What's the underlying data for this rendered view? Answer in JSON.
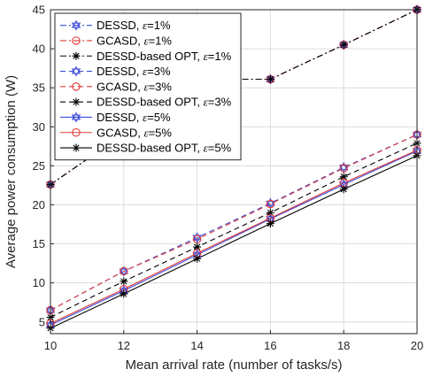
{
  "chart_data": {
    "type": "line",
    "title": "",
    "xlabel": "Mean arrival rate (number of tasks/s)",
    "ylabel": "Average power consumption (W)",
    "xlim": [
      10,
      20
    ],
    "ylim": [
      3.5,
      45
    ],
    "x": [
      10,
      12,
      14,
      16,
      18,
      20
    ],
    "xticks": [
      "10",
      "12",
      "14",
      "16",
      "18",
      "20"
    ],
    "yticks": [
      "5",
      "10",
      "15",
      "20",
      "25",
      "30",
      "35",
      "40",
      "45"
    ],
    "grid": true,
    "legend_position": "top-left",
    "series": [
      {
        "name": "DESSD, ε=1%",
        "legend_main": "DESSD, ",
        "legend_var": "ε",
        "legend_rest": "=1%",
        "color": "#3b4bd9",
        "dash": "dashdot",
        "marker": "hexagram",
        "values": [
          22.6,
          29.1,
          36.1,
          36.1,
          40.5,
          45.0
        ]
      },
      {
        "name": "GCASD, ε=1%",
        "legend_main": "GCASD, ",
        "legend_var": "ε",
        "legend_rest": "=1%",
        "color": "#e23a3a",
        "dash": "dashdot",
        "marker": "circle",
        "values": [
          22.6,
          29.1,
          36.1,
          36.1,
          40.5,
          45.0
        ]
      },
      {
        "name": "DESSD-based OPT, ε=1%",
        "legend_main": "DESSD-based OPT, ",
        "legend_var": "ε",
        "legend_rest": "=1%",
        "color": "#000000",
        "dash": "dashdot",
        "marker": "asterisk",
        "values": [
          22.6,
          29.1,
          36.1,
          36.1,
          40.5,
          45.0
        ]
      },
      {
        "name": "DESSD, ε=3%",
        "legend_main": "DESSD, ",
        "legend_var": "ε",
        "legend_rest": "=3%",
        "color": "#3b4bd9",
        "dash": "dashed",
        "marker": "hexagram",
        "values": [
          6.5,
          11.5,
          15.8,
          20.2,
          24.8,
          29.0
        ]
      },
      {
        "name": "GCASD, ε=3%",
        "legend_main": "GCASD, ",
        "legend_var": "ε",
        "legend_rest": "=3%",
        "color": "#e23a3a",
        "dash": "dashed",
        "marker": "circle",
        "values": [
          6.5,
          11.5,
          15.6,
          20.1,
          24.7,
          29.0
        ]
      },
      {
        "name": "DESSD-based OPT, ε=3%",
        "legend_main": "DESSD-based OPT, ",
        "legend_var": "ε",
        "legend_rest": "=3%",
        "color": "#000000",
        "dash": "dashed",
        "marker": "asterisk",
        "values": [
          5.6,
          10.2,
          14.6,
          19.0,
          23.6,
          27.9
        ]
      },
      {
        "name": "DESSD, ε=5%",
        "legend_main": "DESSD, ",
        "legend_var": "ε",
        "legend_rest": "=5%",
        "color": "#3b4bd9",
        "dash": "solid",
        "marker": "hexagram",
        "values": [
          4.6,
          9.0,
          13.6,
          18.2,
          22.6,
          26.9
        ]
      },
      {
        "name": "GCASD, ε=5%",
        "legend_main": "GCASD, ",
        "legend_var": "ε",
        "legend_rest": "=5%",
        "color": "#e23a3a",
        "dash": "solid",
        "marker": "circle",
        "values": [
          4.8,
          9.2,
          13.8,
          18.3,
          22.8,
          27.0
        ]
      },
      {
        "name": "DESSD-based OPT, ε=5%",
        "legend_main": "DESSD-based OPT, ",
        "legend_var": "ε",
        "legend_rest": "=5%",
        "color": "#000000",
        "dash": "solid",
        "marker": "asterisk",
        "values": [
          4.2,
          8.6,
          13.1,
          17.6,
          22.0,
          26.3
        ]
      }
    ]
  }
}
